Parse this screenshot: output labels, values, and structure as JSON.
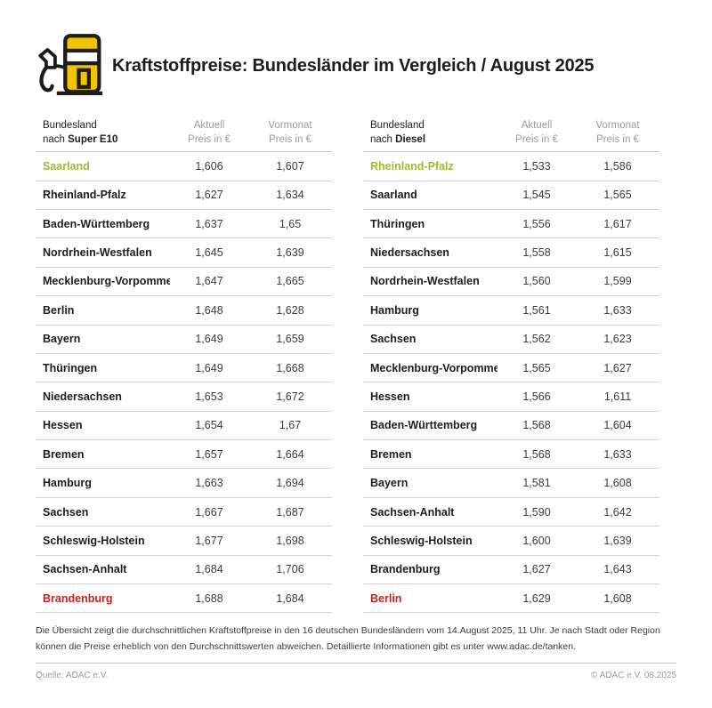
{
  "header": {
    "title": "Kraftstoffpreise: Bundesländer im Vergleich / August 2025",
    "icon": "fuel-pump-icon"
  },
  "columns": {
    "bundesland": "Bundesland",
    "nach": "nach",
    "aktuell": "Aktuell",
    "vormonat": "Vormonat",
    "unit": "Preis in €"
  },
  "colors": {
    "accent_yellow": "#f2c400",
    "highlight_green": "#9dba33",
    "highlight_red": "#c4231f",
    "outline_black": "#1d1d1b"
  },
  "chart_data": [
    {
      "type": "table",
      "fuel": "Super E10",
      "columns": [
        "Bundesland nach Super E10",
        "Aktuell Preis in €",
        "Vormonat Preis in €"
      ],
      "rows": [
        {
          "name": "Saarland",
          "aktuell": "1,606",
          "vormonat": "1,607",
          "highlight": "green"
        },
        {
          "name": "Rheinland-Pfalz",
          "aktuell": "1,627",
          "vormonat": "1,634"
        },
        {
          "name": "Baden-Württemberg",
          "aktuell": "1,637",
          "vormonat": "1,65"
        },
        {
          "name": "Nordrhein-Westfalen",
          "aktuell": "1,645",
          "vormonat": "1,639"
        },
        {
          "name": "Mecklenburg-Vorpommern",
          "aktuell": "1,647",
          "vormonat": "1,665"
        },
        {
          "name": "Berlin",
          "aktuell": "1,648",
          "vormonat": "1,628"
        },
        {
          "name": "Bayern",
          "aktuell": "1,649",
          "vormonat": "1,659"
        },
        {
          "name": "Thüringen",
          "aktuell": "1,649",
          "vormonat": "1,668"
        },
        {
          "name": "Niedersachsen",
          "aktuell": "1,653",
          "vormonat": "1,672"
        },
        {
          "name": "Hessen",
          "aktuell": "1,654",
          "vormonat": "1,67"
        },
        {
          "name": "Bremen",
          "aktuell": "1,657",
          "vormonat": "1,664"
        },
        {
          "name": "Hamburg",
          "aktuell": "1,663",
          "vormonat": "1,694"
        },
        {
          "name": "Sachsen",
          "aktuell": "1,667",
          "vormonat": "1,687"
        },
        {
          "name": "Schleswig-Holstein",
          "aktuell": "1,677",
          "vormonat": "1,698"
        },
        {
          "name": "Sachsen-Anhalt",
          "aktuell": "1,684",
          "vormonat": "1,706"
        },
        {
          "name": "Brandenburg",
          "aktuell": "1,688",
          "vormonat": "1,684",
          "highlight": "red"
        }
      ]
    },
    {
      "type": "table",
      "fuel": "Diesel",
      "columns": [
        "Bundesland nach Diesel",
        "Aktuell Preis in €",
        "Vormonat Preis in €"
      ],
      "rows": [
        {
          "name": "Rheinland-Pfalz",
          "aktuell": "1,533",
          "vormonat": "1,586",
          "highlight": "green"
        },
        {
          "name": "Saarland",
          "aktuell": "1,545",
          "vormonat": "1,565"
        },
        {
          "name": "Thüringen",
          "aktuell": "1,556",
          "vormonat": "1,617"
        },
        {
          "name": "Niedersachsen",
          "aktuell": "1,558",
          "vormonat": "1,615"
        },
        {
          "name": "Nordrhein-Westfalen",
          "aktuell": "1,560",
          "vormonat": "1,599"
        },
        {
          "name": "Hamburg",
          "aktuell": "1,561",
          "vormonat": "1,633"
        },
        {
          "name": "Sachsen",
          "aktuell": "1,562",
          "vormonat": "1,623"
        },
        {
          "name": "Mecklenburg-Vorpommern",
          "aktuell": "1,565",
          "vormonat": "1,627"
        },
        {
          "name": "Hessen",
          "aktuell": "1,566",
          "vormonat": "1,611"
        },
        {
          "name": "Baden-Württemberg",
          "aktuell": "1,568",
          "vormonat": "1,604"
        },
        {
          "name": "Bremen",
          "aktuell": "1,568",
          "vormonat": "1,633"
        },
        {
          "name": "Bayern",
          "aktuell": "1,581",
          "vormonat": "1,608"
        },
        {
          "name": "Sachsen-Anhalt",
          "aktuell": "1,590",
          "vormonat": "1,642"
        },
        {
          "name": "Schleswig-Holstein",
          "aktuell": "1,600",
          "vormonat": "1,639"
        },
        {
          "name": "Brandenburg",
          "aktuell": "1,627",
          "vormonat": "1,643"
        },
        {
          "name": "Berlin",
          "aktuell": "1,629",
          "vormonat": "1,608",
          "highlight": "red"
        }
      ]
    }
  ],
  "footnote": {
    "text": "Die Übersicht zeigt die durchschnittlichen Kraftstoffpreise in den 16 deutschen Bundesländern vom 14.August 2025, 11 Uhr. Je nach Stadt oder Region können die Preise erheblich von den Durchschnittswerten abweichen. Detaillierte Informationen gibt es unter www.adac.de/tanken."
  },
  "footer": {
    "source": "Quelle: ADAC e.V.",
    "copyright": "© ADAC e.V. 08.2025"
  }
}
